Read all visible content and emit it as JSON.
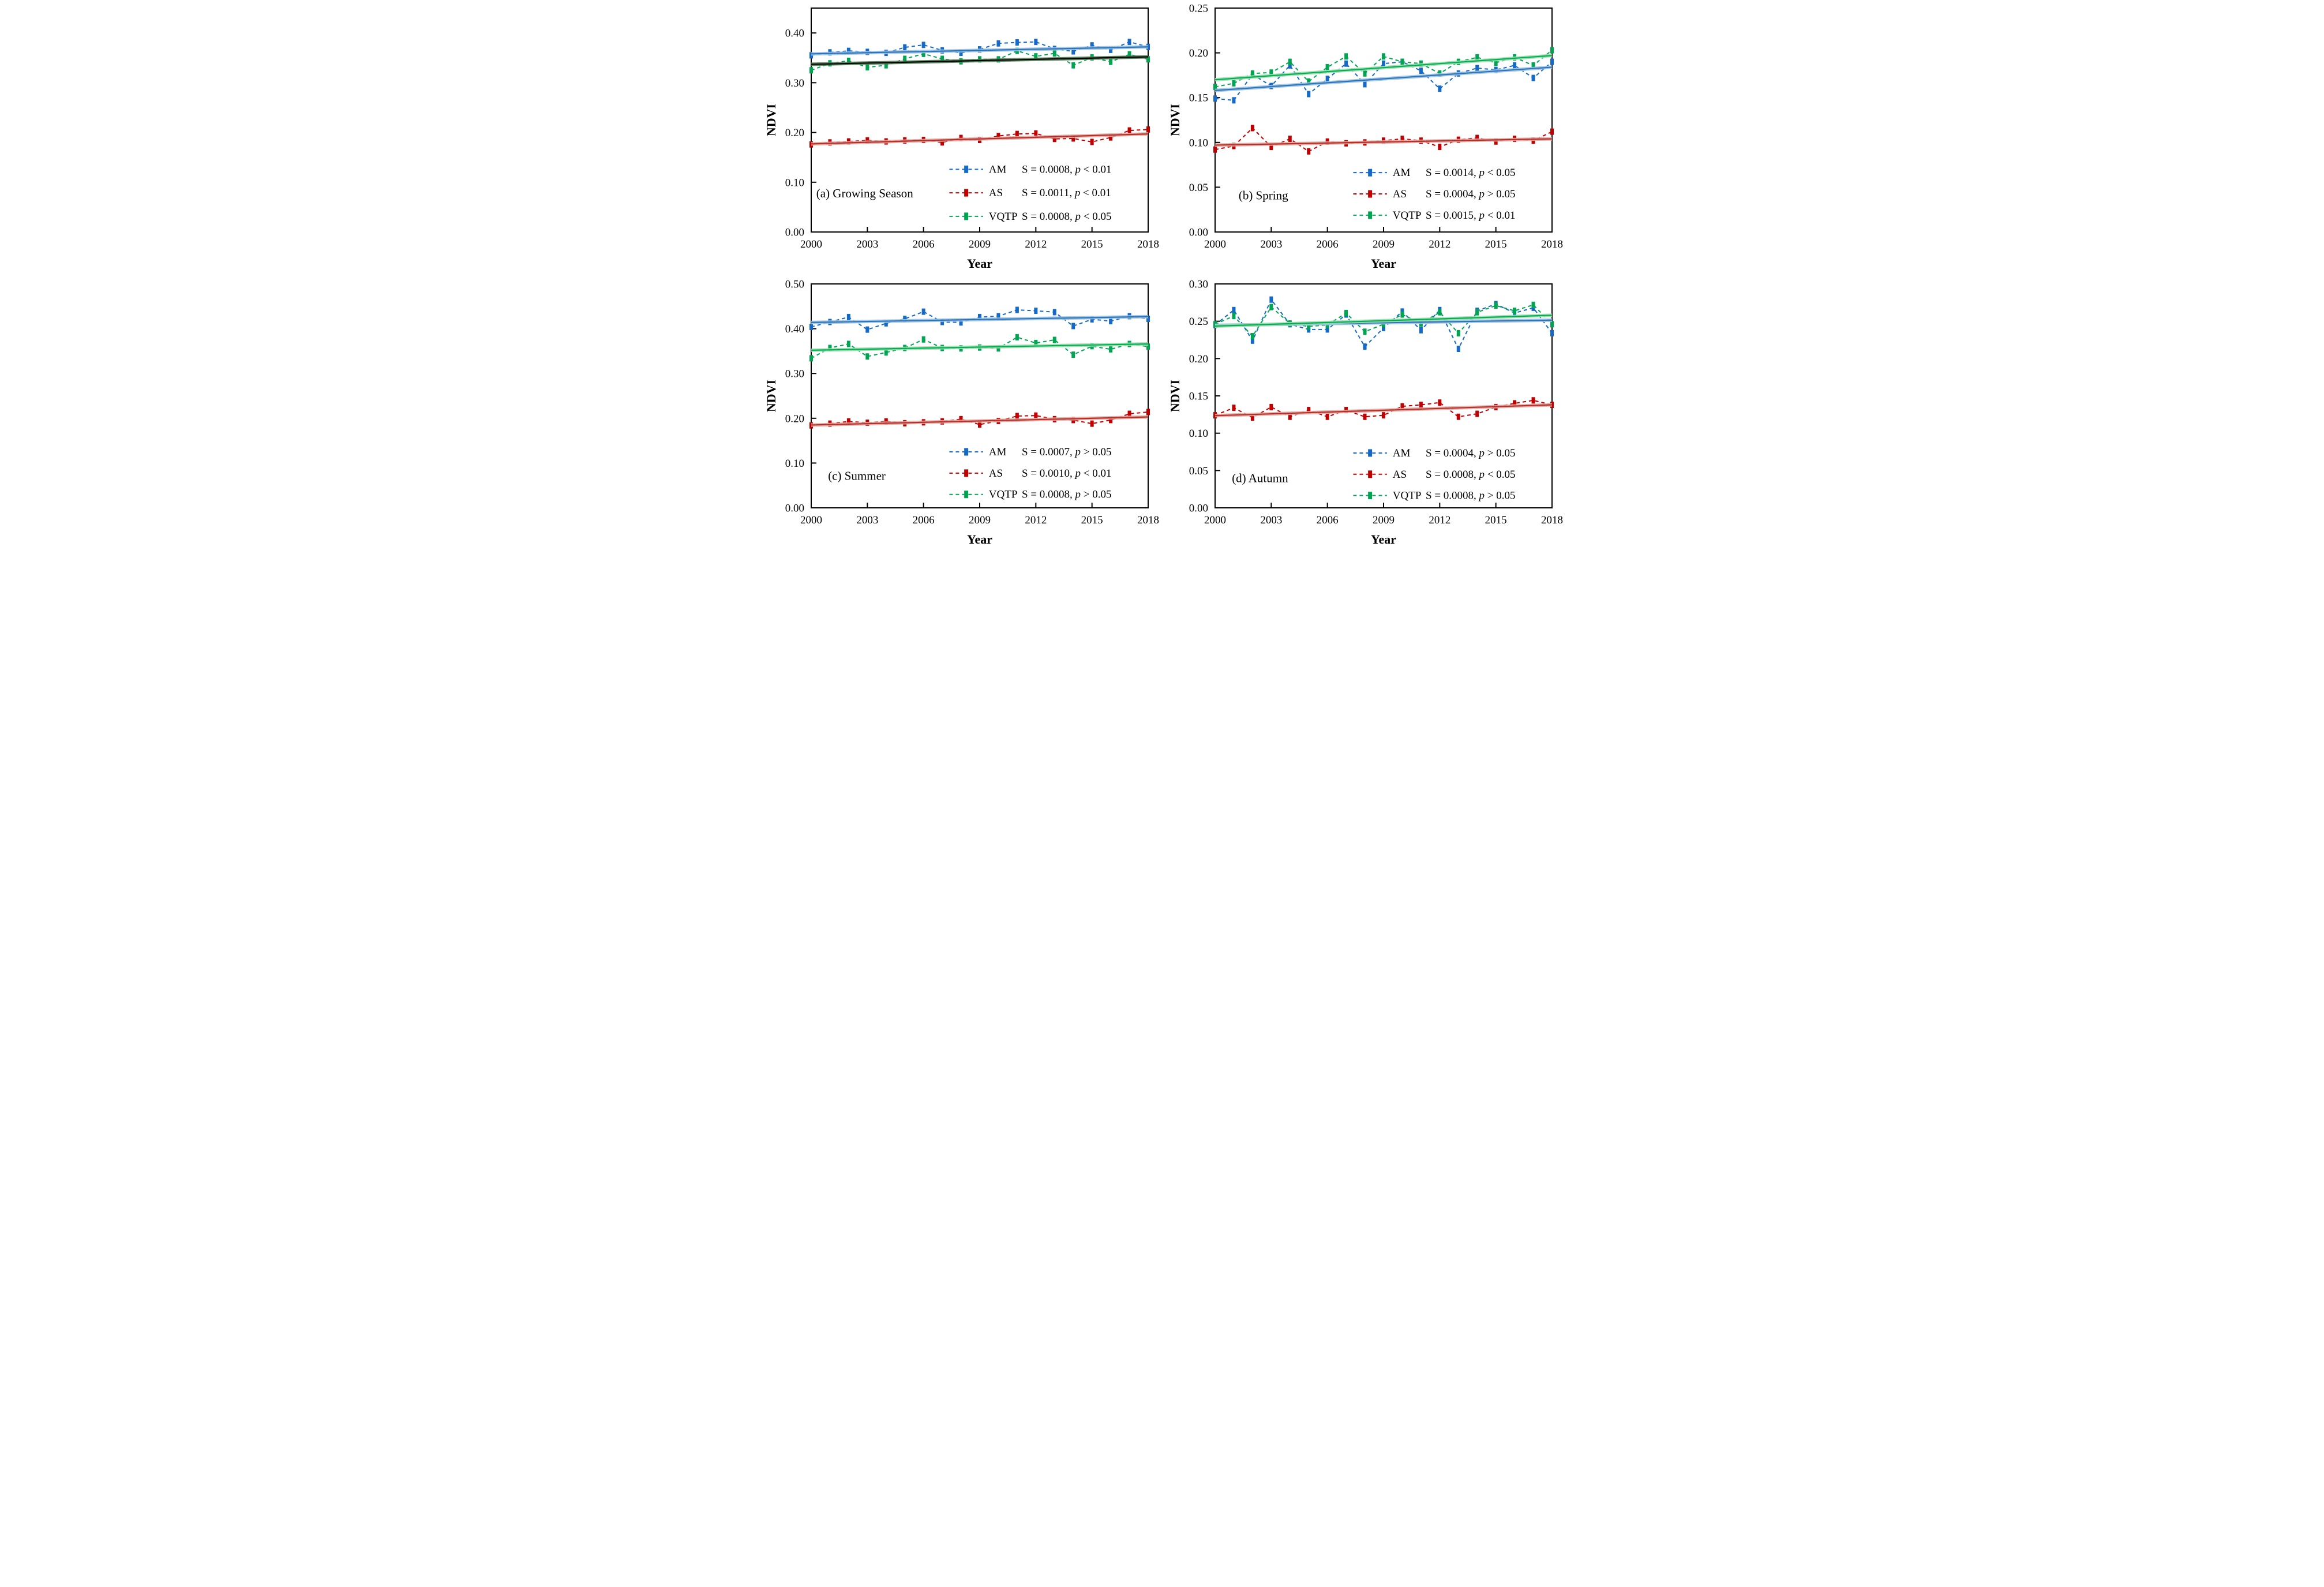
{
  "figure": {
    "background": "#ffffff",
    "x_axis_label": "Year",
    "y_axis_label": "NDVI"
  },
  "colors": {
    "AM": "#1569c7",
    "AS": "#c00000",
    "VQTP": "#00a551",
    "AM_trend": "#2e75b6",
    "AM_trend_halo": "#9dc3e6",
    "AS_trend": "#b63028",
    "AS_trend_halo": "#e2a9a4",
    "VQTP_trend": "#00b050",
    "VQTP_trend_halo": "#9fdcb2",
    "VQTP_trend_dark": "#000000",
    "VQTP_trend_dark_halo": "#4e7e52",
    "axis": "#000000"
  },
  "chart_data": [
    {
      "id": "a",
      "type": "line",
      "panel_label": "(a) Growing Season",
      "xlabel": "Year",
      "ylabel": "NDVI",
      "x": [
        2000,
        2001,
        2002,
        2003,
        2004,
        2005,
        2006,
        2007,
        2008,
        2009,
        2010,
        2011,
        2012,
        2013,
        2014,
        2015,
        2016,
        2017,
        2018
      ],
      "xticks": [
        2000,
        2003,
        2006,
        2009,
        2012,
        2015,
        2018
      ],
      "ylim": [
        0,
        0.45
      ],
      "yticks": [
        0.0,
        0.1,
        0.2,
        0.3,
        0.4
      ],
      "grid": false,
      "legend_position": "inside-lower-right",
      "label_pos": {
        "x": 0.015,
        "y": 0.845
      },
      "legend": {
        "rows_y": [
          0.72,
          0.825,
          0.93
        ]
      },
      "series": [
        {
          "name": "AM",
          "stats": "S = 0.0008, p < 0.01",
          "trend": [
            0.358,
            0.372
          ],
          "trend_style": "blue",
          "values": [
            0.355,
            0.361,
            0.364,
            0.362,
            0.36,
            0.371,
            0.376,
            0.365,
            0.36,
            0.367,
            0.379,
            0.381,
            0.382,
            0.368,
            0.363,
            0.375,
            0.366,
            0.382,
            0.372
          ]
        },
        {
          "name": "AS",
          "stats": "S = 0.0011, p < 0.01",
          "trend": [
            0.177,
            0.197
          ],
          "trend_style": "red",
          "values": [
            0.176,
            0.18,
            0.182,
            0.184,
            0.182,
            0.184,
            0.185,
            0.18,
            0.189,
            0.185,
            0.193,
            0.197,
            0.198,
            0.187,
            0.188,
            0.181,
            0.19,
            0.204,
            0.206
          ]
        },
        {
          "name": "VQTP",
          "stats": "S = 0.0008, p < 0.05",
          "trend": [
            0.337,
            0.352
          ],
          "trend_style": "dark",
          "values": [
            0.325,
            0.339,
            0.344,
            0.331,
            0.335,
            0.348,
            0.358,
            0.348,
            0.343,
            0.347,
            0.347,
            0.364,
            0.353,
            0.359,
            0.335,
            0.351,
            0.342,
            0.357,
            0.347
          ]
        }
      ]
    },
    {
      "id": "b",
      "type": "line",
      "panel_label": "(b) Spring",
      "xlabel": "Year",
      "ylabel": "NDVI",
      "x": [
        2000,
        2001,
        2002,
        2003,
        2004,
        2005,
        2006,
        2007,
        2008,
        2009,
        2010,
        2011,
        2012,
        2013,
        2014,
        2015,
        2016,
        2017,
        2018
      ],
      "xticks": [
        2000,
        2003,
        2006,
        2009,
        2012,
        2015,
        2018
      ],
      "ylim": [
        0,
        0.25
      ],
      "yticks": [
        0.0,
        0.05,
        0.1,
        0.15,
        0.2,
        0.25
      ],
      "grid": false,
      "legend_position": "inside-lower-right",
      "label_pos": {
        "x": 0.07,
        "y": 0.855
      },
      "legend": {
        "rows_y": [
          0.735,
          0.83,
          0.925
        ]
      },
      "series": [
        {
          "name": "AM",
          "stats": "S = 0.0014, p < 0.05",
          "trend": [
            0.158,
            0.184
          ],
          "trend_style": "blue",
          "values": [
            0.149,
            0.147,
            0.176,
            0.163,
            0.186,
            0.154,
            0.171,
            0.188,
            0.165,
            0.188,
            0.19,
            0.18,
            0.16,
            0.177,
            0.183,
            0.181,
            0.186,
            0.172,
            0.19
          ]
        },
        {
          "name": "AS",
          "stats": "S = 0.0004, p > 0.05",
          "trend": [
            0.097,
            0.104
          ],
          "trend_style": "red",
          "values": [
            0.092,
            0.096,
            0.116,
            0.095,
            0.104,
            0.09,
            0.101,
            0.099,
            0.1,
            0.102,
            0.104,
            0.102,
            0.095,
            0.103,
            0.105,
            0.101,
            0.104,
            0.102,
            0.112
          ]
        },
        {
          "name": "VQTP",
          "stats": "S = 0.0015, p < 0.01",
          "trend": [
            0.17,
            0.197
          ],
          "trend_style": "green",
          "values": [
            0.162,
            0.166,
            0.177,
            0.178,
            0.19,
            0.168,
            0.184,
            0.196,
            0.177,
            0.196,
            0.19,
            0.188,
            0.177,
            0.19,
            0.195,
            0.189,
            0.195,
            0.186,
            0.203
          ]
        }
      ]
    },
    {
      "id": "c",
      "type": "line",
      "panel_label": "(c) Summer",
      "xlabel": "Year",
      "ylabel": "NDVI",
      "x": [
        2000,
        2001,
        2002,
        2003,
        2004,
        2005,
        2006,
        2007,
        2008,
        2009,
        2010,
        2011,
        2012,
        2013,
        2014,
        2015,
        2016,
        2017,
        2018
      ],
      "xticks": [
        2000,
        2003,
        2006,
        2009,
        2012,
        2015,
        2018
      ],
      "ylim": [
        0,
        0.5
      ],
      "yticks": [
        0.0,
        0.1,
        0.2,
        0.3,
        0.4,
        0.5
      ],
      "grid": false,
      "legend_position": "inside-lower-right",
      "label_pos": {
        "x": 0.05,
        "y": 0.875
      },
      "legend": {
        "rows_y": [
          0.75,
          0.845,
          0.94
        ]
      },
      "series": [
        {
          "name": "AM",
          "stats": "S = 0.0007, p > 0.05",
          "trend": [
            0.414,
            0.427
          ],
          "trend_style": "blue",
          "values": [
            0.404,
            0.415,
            0.426,
            0.398,
            0.412,
            0.422,
            0.438,
            0.415,
            0.414,
            0.426,
            0.428,
            0.442,
            0.44,
            0.437,
            0.406,
            0.421,
            0.417,
            0.428,
            0.422
          ]
        },
        {
          "name": "AS",
          "stats": "S = 0.0010, p < 0.01",
          "trend": [
            0.185,
            0.203
          ],
          "trend_style": "red",
          "values": [
            0.184,
            0.188,
            0.193,
            0.19,
            0.193,
            0.189,
            0.191,
            0.193,
            0.198,
            0.186,
            0.194,
            0.205,
            0.206,
            0.198,
            0.196,
            0.188,
            0.196,
            0.21,
            0.214
          ]
        },
        {
          "name": "VQTP",
          "stats": "S = 0.0008, p > 0.05",
          "trend": [
            0.352,
            0.366
          ],
          "trend_style": "green",
          "values": [
            0.334,
            0.357,
            0.366,
            0.338,
            0.347,
            0.357,
            0.376,
            0.357,
            0.356,
            0.358,
            0.356,
            0.381,
            0.368,
            0.375,
            0.342,
            0.361,
            0.354,
            0.366,
            0.36
          ]
        }
      ]
    },
    {
      "id": "d",
      "type": "line",
      "panel_label": "(d) Autumn",
      "xlabel": "Year",
      "ylabel": "NDVI",
      "x": [
        2000,
        2001,
        2002,
        2003,
        2004,
        2005,
        2006,
        2007,
        2008,
        2009,
        2010,
        2011,
        2012,
        2013,
        2014,
        2015,
        2016,
        2017,
        2018
      ],
      "xticks": [
        2000,
        2003,
        2006,
        2009,
        2012,
        2015,
        2018
      ],
      "ylim": [
        0,
        0.3
      ],
      "yticks": [
        0.0,
        0.05,
        0.1,
        0.15,
        0.2,
        0.25,
        0.3
      ],
      "grid": false,
      "legend_position": "inside-lower-right",
      "label_pos": {
        "x": 0.05,
        "y": 0.885
      },
      "legend": {
        "rows_y": [
          0.755,
          0.85,
          0.945
        ]
      },
      "series": [
        {
          "name": "AM",
          "stats": "S = 0.0004, p > 0.05",
          "trend": [
            0.2445,
            0.2515
          ],
          "trend_style": "blue",
          "values": [
            0.245,
            0.265,
            0.224,
            0.279,
            0.246,
            0.239,
            0.239,
            0.259,
            0.216,
            0.241,
            0.263,
            0.238,
            0.265,
            0.213,
            0.264,
            0.273,
            0.261,
            0.268,
            0.234
          ]
        },
        {
          "name": "AS",
          "stats": "S = 0.0008, p < 0.05",
          "trend": [
            0.1235,
            0.138
          ],
          "trend_style": "red",
          "values": [
            0.124,
            0.134,
            0.121,
            0.135,
            0.122,
            0.131,
            0.122,
            0.131,
            0.122,
            0.124,
            0.136,
            0.138,
            0.141,
            0.122,
            0.126,
            0.135,
            0.14,
            0.144,
            0.138
          ]
        },
        {
          "name": "VQTP",
          "stats": "S = 0.0008, p > 0.05",
          "trend": [
            0.2435,
            0.258
          ],
          "trend_style": "green",
          "values": [
            0.246,
            0.257,
            0.23,
            0.269,
            0.247,
            0.243,
            0.245,
            0.261,
            0.236,
            0.246,
            0.259,
            0.247,
            0.262,
            0.234,
            0.262,
            0.271,
            0.264,
            0.272,
            0.246
          ]
        }
      ]
    }
  ]
}
